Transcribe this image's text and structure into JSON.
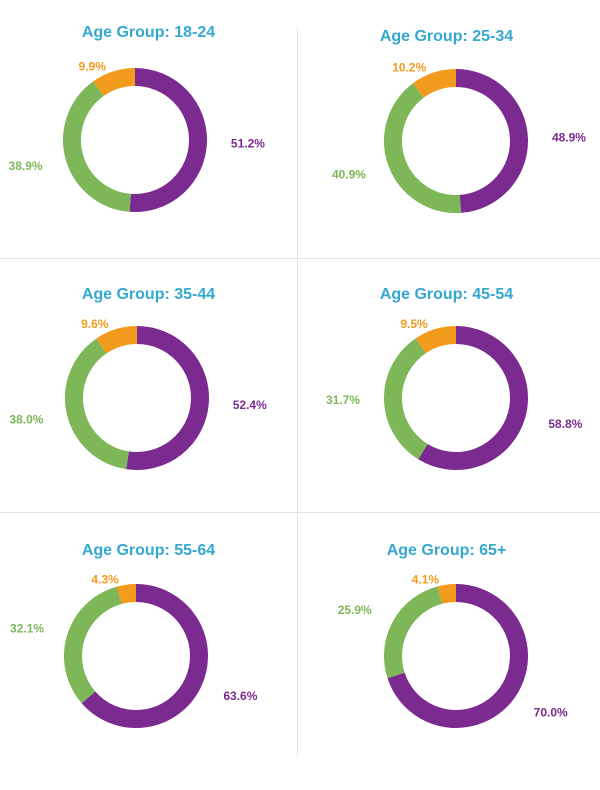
{
  "colors": {
    "title": "#35a8cf",
    "purple": "#7b2a8f",
    "green": "#7db757",
    "orange": "#f29b1d"
  },
  "chart_data": [
    {
      "type": "pie",
      "title": "Age Group: 18-24",
      "slices": [
        {
          "label": "51.2%",
          "value": 51.2,
          "color": "#7b2a8f"
        },
        {
          "label": "38.9%",
          "value": 38.9,
          "color": "#7db757"
        },
        {
          "label": "9.9%",
          "value": 9.9,
          "color": "#f29b1d"
        }
      ]
    },
    {
      "type": "pie",
      "title": "Age Group: 25-34",
      "slices": [
        {
          "label": "48.9%",
          "value": 48.9,
          "color": "#7b2a8f"
        },
        {
          "label": "40.9%",
          "value": 40.9,
          "color": "#7db757"
        },
        {
          "label": "10.2%",
          "value": 10.2,
          "color": "#f29b1d"
        }
      ]
    },
    {
      "type": "pie",
      "title": "Age Group: 35-44",
      "slices": [
        {
          "label": "52.4%",
          "value": 52.4,
          "color": "#7b2a8f"
        },
        {
          "label": "38.0%",
          "value": 38.0,
          "color": "#7db757"
        },
        {
          "label": "9.6%",
          "value": 9.6,
          "color": "#f29b1d"
        }
      ]
    },
    {
      "type": "pie",
      "title": "Age Group: 45-54",
      "slices": [
        {
          "label": "58.8%",
          "value": 58.8,
          "color": "#7b2a8f"
        },
        {
          "label": "31.7%",
          "value": 31.7,
          "color": "#7db757"
        },
        {
          "label": "9.5%",
          "value": 9.5,
          "color": "#f29b1d"
        }
      ]
    },
    {
      "type": "pie",
      "title": "Age Group: 55-64",
      "slices": [
        {
          "label": "63.6%",
          "value": 63.6,
          "color": "#7b2a8f"
        },
        {
          "label": "32.1%",
          "value": 32.1,
          "color": "#7db757"
        },
        {
          "label": "4.3%",
          "value": 4.3,
          "color": "#f29b1d"
        }
      ]
    },
    {
      "type": "pie",
      "title": "Age Group: 65+",
      "slices": [
        {
          "label": "70.0%",
          "value": 70.0,
          "color": "#7b2a8f"
        },
        {
          "label": "25.9%",
          "value": 25.9,
          "color": "#7db757"
        },
        {
          "label": "4.1%",
          "value": 4.1,
          "color": "#f29b1d"
        }
      ]
    }
  ]
}
